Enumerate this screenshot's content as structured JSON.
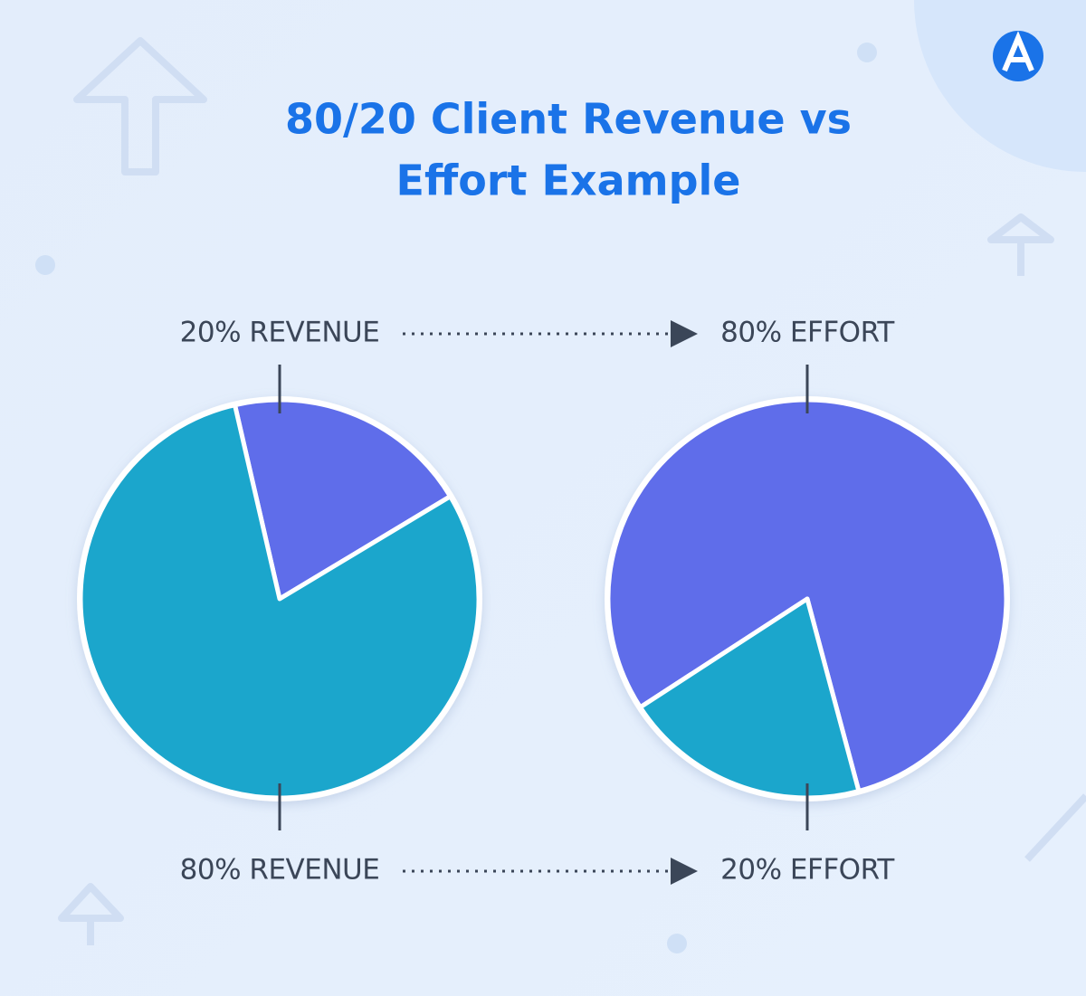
{
  "title_lines": [
    "80/20 Client Revenue vs",
    "Effort Example"
  ],
  "chart_data": [
    {
      "type": "pie",
      "values": [
        20,
        80
      ],
      "value_labels": [
        "20% REVENUE",
        "80% REVENUE"
      ],
      "colors": [
        "#5f6dea",
        "#1ba6cc"
      ]
    },
    {
      "type": "pie",
      "values": [
        80,
        20
      ],
      "value_labels": [
        "80% EFFORT",
        "20% EFFORT"
      ],
      "colors": [
        "#5f6dea",
        "#1ba6cc"
      ]
    }
  ]
}
